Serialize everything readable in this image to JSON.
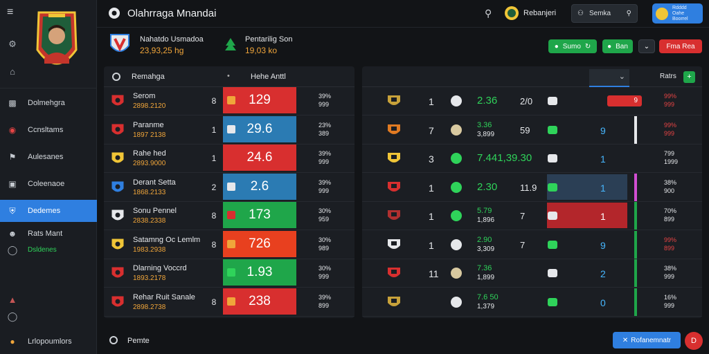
{
  "app": {
    "title": "Olahrraga Mnandai"
  },
  "topbar": {
    "club_name": "Rebanjeri",
    "search_label": "Semka",
    "profile_line1": "Rdddd",
    "profile_line2": "Oahe",
    "profile_line3": "Boorrel"
  },
  "sidebar": {
    "items": [
      {
        "label": "Dolmehgra",
        "icon": "tablet-icon"
      },
      {
        "label": "Ccnsltams",
        "icon": "target-icon"
      },
      {
        "label": "Aulesanes",
        "icon": "flag-icon"
      },
      {
        "label": "Coleenaoe",
        "icon": "briefcase-icon"
      },
      {
        "label": "Dedemes",
        "icon": "shield-icon"
      },
      {
        "label": "Rats Mant",
        "icon": "people-icon"
      }
    ],
    "sub_label": "Dsldenes",
    "footer_label": "Lrlopoumlors"
  },
  "match": {
    "team1_name": "Nahatdo Usmadoa",
    "team1_score": "23,93,25 hg",
    "team2_name": "Pentarilig Son",
    "team2_score": "19,03 ko",
    "action_green1": "Sumo",
    "action_green2": "Ban",
    "action_red": "Fma Rea"
  },
  "left_panel": {
    "header_left": "Remahga",
    "header_right": "Hehe Anttl",
    "rows": [
      {
        "name": "Serom",
        "sub": "2898.2120",
        "mark": "8",
        "value": "129",
        "pct1": "39%",
        "pct2": "999",
        "bar_color": "#d82f2f",
        "chip": "#f0a53a",
        "crest": "#d82f2f"
      },
      {
        "name": "Paranme",
        "sub": "1897 2138",
        "mark": "1",
        "value": "29.6",
        "pct1": "23%",
        "pct2": "389",
        "bar_color": "#2b7bb3",
        "chip": "#e6e8eb",
        "crest": "#d82f2f"
      },
      {
        "name": "Rahe hed",
        "sub": "2893.9000",
        "mark": "1",
        "value": "24.6",
        "pct1": "39%",
        "pct2": "999",
        "bar_color": "#d82f2f",
        "chip": "#d82f2f",
        "crest": "#f0c537"
      },
      {
        "name": "Derant Setta",
        "sub": "1868.2133",
        "mark": "2",
        "value": "2.6",
        "pct1": "39%",
        "pct2": "999",
        "bar_color": "#2b7bb3",
        "chip": "#e6e8eb",
        "crest": "#2f7fe0"
      },
      {
        "name": "Sonu Pennel",
        "sub": "2838.2338",
        "mark": "8",
        "value": "173",
        "pct1": "30%",
        "pct2": "959",
        "bar_color": "#1fa64a",
        "chip": "#d82f2f",
        "crest": "#e6e8eb"
      },
      {
        "name": "Satamng Oc Lemlm",
        "sub": "1983.2938",
        "mark": "8",
        "value": "726",
        "pct1": "30%",
        "pct2": "989",
        "bar_color": "#e8401f",
        "chip": "#f0a53a",
        "crest": "#f0c537"
      },
      {
        "name": "Dlarning Voccrd",
        "sub": "1893.2178",
        "mark": "",
        "value": "1.93",
        "pct1": "30%",
        "pct2": "999",
        "bar_color": "#1fa64a",
        "chip": "#2fd35a",
        "crest": "#d82f2f"
      },
      {
        "name": "Rehar Ruit Sanale",
        "sub": "2898.2738",
        "mark": "8",
        "value": "238",
        "pct1": "39%",
        "pct2": "899",
        "bar_color": "#d82f2f",
        "chip": "#f0a53a",
        "crest": "#d82f2f"
      }
    ]
  },
  "right_panel": {
    "header_label": "Ratrs",
    "rows": [
      {
        "num": "1",
        "g1": "2.36",
        "n2": "2/0",
        "big": "",
        "r1": "99%",
        "r2": "999",
        "red_text": true,
        "badge": "9"
      },
      {
        "num": "7",
        "g1": "3.36",
        "g1b": "3,899",
        "n2": "59",
        "big": "9",
        "r1": "99%",
        "r2": "999",
        "red_text": true
      },
      {
        "num": "3",
        "g1": "7.441,39.30",
        "n2": "",
        "big": "1",
        "r1": "799",
        "r2": "1999",
        "red_text": false
      },
      {
        "num": "1",
        "g1": "2.30",
        "n2": "11.9",
        "big": "1",
        "r1": "38%",
        "r2": "900",
        "red_text": false
      },
      {
        "num": "1",
        "g1": "5.79",
        "g1b": "1,896",
        "n2": "7",
        "big": "1",
        "r1": "70%",
        "r2": "899",
        "red_text": false
      },
      {
        "num": "1",
        "g1": "2.90",
        "g1b": "3,309",
        "n2": "7",
        "big": "9",
        "r1": "99%",
        "r2": "899",
        "red_text": true
      },
      {
        "num": "11",
        "g1": "7.36",
        "g1b": "1,899",
        "n2": "",
        "big": "2",
        "r1": "38%",
        "r2": "999",
        "red_text": false
      },
      {
        "num": "",
        "g1": "7.6 50",
        "g1b": "1,379",
        "n2": "",
        "big": "0",
        "r1": "16%",
        "r2": "999",
        "red_text": false
      }
    ]
  },
  "bottom": {
    "label": "Pemte",
    "button_label": "Rofanemnatr",
    "circle_label": "D"
  }
}
